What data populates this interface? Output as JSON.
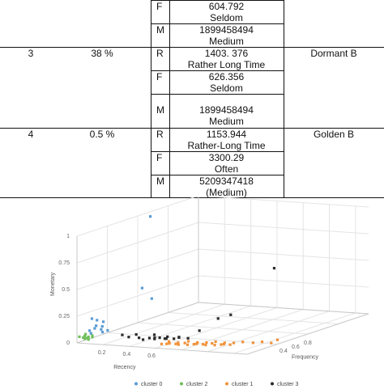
{
  "table": {
    "rows": [
      {
        "cluster": "",
        "share": "",
        "name": "",
        "metrics": [
          {
            "key": "F",
            "value": "604.792",
            "label": "Seldom"
          },
          {
            "key": "M",
            "value": "1899458494",
            "label": "Medium"
          }
        ]
      },
      {
        "cluster": "3",
        "share": "38 %",
        "name": "Dormant B",
        "metrics": [
          {
            "key": "R",
            "value": "1403. 376",
            "label": "Rather Long Time"
          },
          {
            "key": "F",
            "value": "626.356",
            "label": "Seldom"
          },
          {
            "key": "M",
            "value": "1899458494",
            "label": "Medium"
          }
        ]
      },
      {
        "cluster": "4",
        "share": "0.5 %",
        "name": "Golden B",
        "metrics": [
          {
            "key": "R",
            "value": "1153.944",
            "label": "Rather-Long Time"
          },
          {
            "key": "F",
            "value": "3300.29",
            "label": "Often"
          },
          {
            "key": "M",
            "value": "5209347418",
            "label": "(Medium)"
          }
        ]
      }
    ]
  },
  "chart_data": {
    "type": "scatter",
    "xlabel": "Recency",
    "ylabel": "Frequency",
    "zlabel": "Monetary",
    "x_ticks": [
      "0.2",
      "0.4",
      "0.6"
    ],
    "y_ticks": [
      "0.4",
      "0.6",
      "0.8"
    ],
    "z_ticks": [
      "0",
      "0.25",
      "0.5",
      "0.75",
      "1"
    ],
    "series": [
      {
        "name": "cluster 0",
        "color": "#5b9bd5",
        "points": [
          [
            0.05,
            0.05,
            0.1
          ],
          [
            0.08,
            0.06,
            0.12
          ],
          [
            0.1,
            0.05,
            0.15
          ],
          [
            0.12,
            0.07,
            0.11
          ],
          [
            0.06,
            0.1,
            0.18
          ],
          [
            0.09,
            0.12,
            0.16
          ],
          [
            0.14,
            0.06,
            0.09
          ],
          [
            0.11,
            0.09,
            0.13
          ],
          [
            0.07,
            0.04,
            0.08
          ],
          [
            0.16,
            0.08,
            0.1
          ],
          [
            0.05,
            0.55,
            0.98
          ],
          [
            0.08,
            0.45,
            0.35
          ],
          [
            0.2,
            0.4,
            0.28
          ],
          [
            0.04,
            0.08,
            0.2
          ]
        ]
      },
      {
        "name": "cluster 2",
        "color": "#70c05a",
        "points": [
          [
            0.0,
            0.02,
            0.05
          ],
          [
            0.02,
            0.03,
            0.04
          ],
          [
            0.04,
            0.02,
            0.06
          ],
          [
            0.06,
            0.03,
            0.05
          ],
          [
            0.08,
            0.04,
            0.06
          ],
          [
            0.03,
            0.05,
            0.03
          ],
          [
            0.05,
            0.01,
            0.04
          ],
          [
            0.01,
            0.06,
            0.06
          ],
          [
            0.07,
            0.02,
            0.03
          ],
          [
            0.09,
            0.03,
            0.05
          ]
        ]
      },
      {
        "name": "cluster 1",
        "color": "#f0923a",
        "points": [
          [
            0.6,
            0.05,
            0.02
          ],
          [
            0.63,
            0.06,
            0.02
          ],
          [
            0.66,
            0.05,
            0.03
          ],
          [
            0.69,
            0.07,
            0.02
          ],
          [
            0.72,
            0.06,
            0.02
          ],
          [
            0.75,
            0.08,
            0.03
          ],
          [
            0.78,
            0.07,
            0.02
          ],
          [
            0.81,
            0.09,
            0.02
          ],
          [
            0.84,
            0.08,
            0.03
          ],
          [
            0.87,
            0.1,
            0.02
          ],
          [
            0.9,
            0.09,
            0.02
          ],
          [
            0.93,
            0.11,
            0.03
          ],
          [
            0.96,
            0.1,
            0.02
          ],
          [
            0.99,
            0.12,
            0.02
          ],
          [
            1.02,
            0.11,
            0.03
          ],
          [
            1.05,
            0.13,
            0.02
          ],
          [
            0.62,
            0.09,
            0.03
          ],
          [
            0.68,
            0.1,
            0.02
          ],
          [
            0.74,
            0.12,
            0.03
          ],
          [
            0.8,
            0.13,
            0.02
          ],
          [
            0.86,
            0.14,
            0.02
          ],
          [
            0.92,
            0.15,
            0.03
          ],
          [
            0.98,
            0.16,
            0.02
          ],
          [
            1.04,
            0.17,
            0.02
          ],
          [
            1.1,
            0.18,
            0.03
          ],
          [
            1.16,
            0.2,
            0.02
          ],
          [
            1.22,
            0.21,
            0.03
          ],
          [
            1.28,
            0.22,
            0.02
          ],
          [
            1.3,
            0.25,
            0.04
          ]
        ]
      },
      {
        "name": "cluster 3",
        "color": "#2b2b2b",
        "points": [
          [
            0.3,
            0.05,
            0.08
          ],
          [
            0.34,
            0.06,
            0.06
          ],
          [
            0.4,
            0.08,
            0.05
          ],
          [
            0.44,
            0.07,
            0.04
          ],
          [
            0.47,
            0.09,
            0.05
          ],
          [
            0.5,
            0.1,
            0.04
          ],
          [
            0.53,
            0.11,
            0.05
          ],
          [
            0.56,
            0.12,
            0.04
          ],
          [
            0.59,
            0.1,
            0.05
          ],
          [
            0.62,
            0.13,
            0.04
          ],
          [
            0.65,
            0.14,
            0.05
          ],
          [
            0.52,
            0.08,
            0.06
          ],
          [
            0.58,
            0.12,
            0.06
          ],
          [
            0.64,
            0.15,
            0.05
          ],
          [
            0.7,
            0.16,
            0.04
          ],
          [
            0.75,
            0.2,
            0.1
          ],
          [
            0.8,
            0.3,
            0.18
          ],
          [
            0.85,
            0.35,
            0.2
          ],
          [
            0.95,
            0.6,
            0.55
          ],
          [
            0.36,
            0.1,
            0.07
          ],
          [
            0.48,
            0.12,
            0.07
          ]
        ]
      }
    ],
    "legend_position": "bottom",
    "grid": true
  }
}
